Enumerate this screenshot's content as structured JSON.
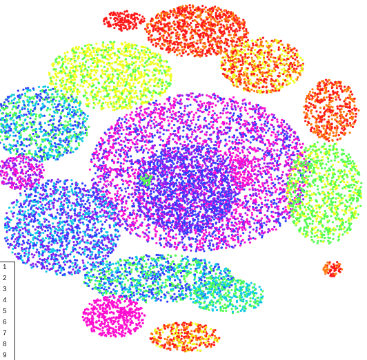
{
  "chart_data": {
    "type": "scatter",
    "title": "",
    "xlabel": "",
    "ylabel": "",
    "grid": false,
    "axes_visible": false,
    "legend": {
      "placement": "bottom-left",
      "entries": [
        "1",
        "2",
        "3",
        "4",
        "5",
        "6",
        "7",
        "8",
        "9"
      ]
    },
    "colormap": "hsv",
    "colors": {
      "red": "#ff1a1a",
      "orange": "#ff7a10",
      "yellow": "#eeff20",
      "green": "#55ff50",
      "cyan": "#10c8e8",
      "blue": "#3040ff",
      "purple": "#8c20f0",
      "magenta": "#ff10d0"
    }
  }
}
